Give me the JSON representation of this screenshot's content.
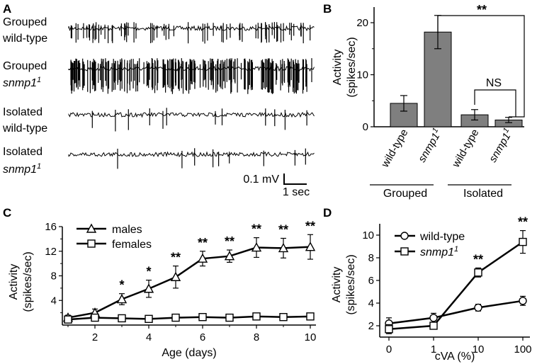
{
  "panels": {
    "A": {
      "label": "A",
      "traces": [
        {
          "line1": "Grouped",
          "line2": "wild-type",
          "italic": false,
          "sup": ""
        },
        {
          "line1": "Grouped",
          "line2": "snmp1",
          "italic": true,
          "sup": "1"
        },
        {
          "line1": "Isolated",
          "line2": "wild-type",
          "italic": false,
          "sup": ""
        },
        {
          "line1": "Isolated",
          "line2": "snmp1",
          "italic": true,
          "sup": "1"
        }
      ],
      "scale_mv": "0.1 mV",
      "scale_t": "1 sec"
    },
    "B": {
      "label": "B"
    },
    "C": {
      "label": "C"
    },
    "D": {
      "label": "D"
    }
  },
  "chart_data": [
    {
      "panel": "B",
      "type": "bar",
      "ylabel": "Activity",
      "ylabel2": "(spikes/sec)",
      "ylim": [
        0,
        23
      ],
      "yticks": [
        0,
        10,
        20
      ],
      "categories": [
        "wild-type",
        "snmp1",
        "wild-type",
        "snmp1"
      ],
      "category_italic": [
        false,
        true,
        false,
        true
      ],
      "category_sup": [
        "",
        "1",
        "",
        "1"
      ],
      "values": [
        4.5,
        18.2,
        2.3,
        1.3
      ],
      "errors": [
        1.5,
        3.2,
        1.0,
        0.5
      ],
      "groups": [
        {
          "label": "Grouped",
          "from": 0,
          "to": 1
        },
        {
          "label": "Isolated",
          "from": 2,
          "to": 3
        }
      ],
      "bar_color": "#7f7f7f",
      "comparisons": [
        {
          "from": 1,
          "to": 3,
          "label": "**"
        },
        {
          "from": 2,
          "to": 3,
          "label": "NS"
        }
      ]
    },
    {
      "panel": "C",
      "type": "line",
      "xlabel": "Age (days)",
      "ylabel": "Activity",
      "ylabel2": "(spikes/sec)",
      "xlim": [
        1,
        10
      ],
      "ylim": [
        0,
        16
      ],
      "xticks": [
        2,
        4,
        6,
        8,
        10
      ],
      "yticks": [
        4,
        8,
        12,
        16
      ],
      "x": [
        1,
        2,
        3,
        4,
        5,
        6,
        7,
        8,
        9,
        10
      ],
      "series": [
        {
          "name": "males",
          "marker": "triangle",
          "values": [
            1.2,
            2.0,
            4.2,
            5.9,
            7.8,
            10.8,
            11.2,
            12.6,
            12.5,
            12.7
          ],
          "errors": [
            0.4,
            0.6,
            0.9,
            1.4,
            1.8,
            1.2,
            1.0,
            1.6,
            1.6,
            2.0
          ]
        },
        {
          "name": "females",
          "marker": "square",
          "values": [
            0.9,
            1.2,
            1.1,
            1.0,
            1.2,
            1.3,
            1.2,
            1.4,
            1.3,
            1.4
          ],
          "errors": [
            0.3,
            0.4,
            0.4,
            0.4,
            0.4,
            0.3,
            0.3,
            0.4,
            0.3,
            0.4
          ]
        }
      ],
      "significance": [
        {
          "x": 3,
          "label": "*"
        },
        {
          "x": 4,
          "label": "*"
        },
        {
          "x": 5,
          "label": "**"
        },
        {
          "x": 6,
          "label": "**"
        },
        {
          "x": 7,
          "label": "**"
        },
        {
          "x": 8,
          "label": "**"
        },
        {
          "x": 9,
          "label": "**"
        },
        {
          "x": 10,
          "label": "**"
        }
      ]
    },
    {
      "panel": "D",
      "type": "line",
      "xlabel": "cVA (%)",
      "ylabel": "Activity",
      "ylabel2": "(spikes/sec)",
      "ylim": [
        1,
        11
      ],
      "categories": [
        "0",
        "1",
        "10",
        "100"
      ],
      "yticks": [
        2,
        4,
        6,
        8,
        10
      ],
      "series": [
        {
          "name": "wild-type",
          "italic": false,
          "sup": "",
          "marker": "circle",
          "values": [
            2.2,
            2.7,
            3.6,
            4.2
          ],
          "errors": [
            0.5,
            0.4,
            0.3,
            0.4
          ]
        },
        {
          "name": "snmp1",
          "italic": true,
          "sup": "1",
          "marker": "square",
          "values": [
            1.7,
            2.0,
            6.7,
            9.4
          ],
          "errors": [
            0.4,
            0.3,
            0.4,
            1.0
          ]
        }
      ],
      "significance": [
        {
          "index": 2,
          "label": "**"
        },
        {
          "index": 3,
          "label": "**"
        }
      ]
    }
  ]
}
